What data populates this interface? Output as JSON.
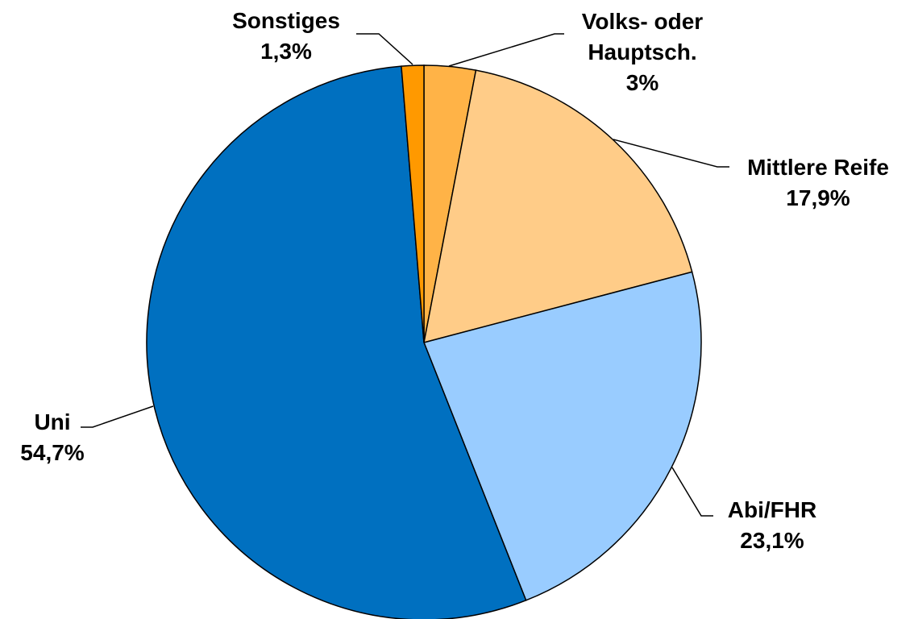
{
  "chart_data": {
    "type": "pie",
    "categories": [
      "Volks- oder Hauptsch.",
      "Mittlere Reife",
      "Abi/FHR",
      "Uni",
      "Sonstiges"
    ],
    "values": [
      3,
      17.9,
      23.1,
      54.7,
      1.3
    ],
    "value_labels": [
      "3%",
      "17,9%",
      "23,1%",
      "54,7%",
      "1,3%"
    ],
    "colors": [
      "#ffb347",
      "#ffcc88",
      "#99ccff",
      "#0070c0",
      "#ff9900"
    ]
  }
}
